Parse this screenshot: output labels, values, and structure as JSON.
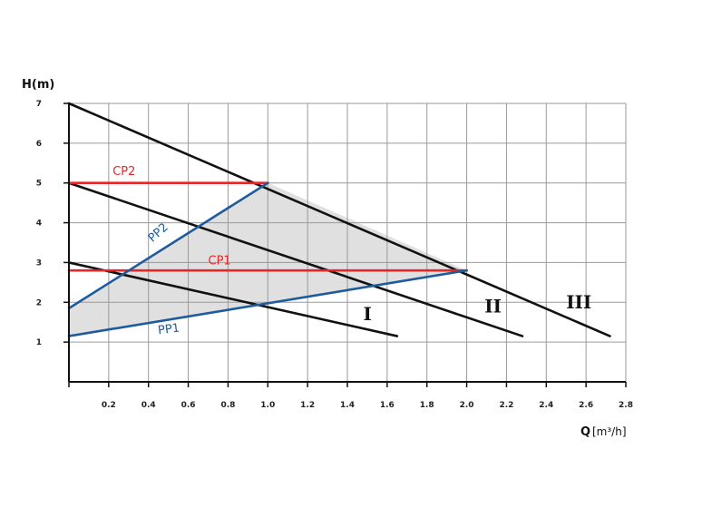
{
  "chart_data": {
    "type": "line",
    "title": "",
    "ylabel": "H(m)",
    "xlabel_main": "Q",
    "xlabel_unit": "[m³/h]",
    "xlim": [
      0,
      2.8
    ],
    "ylim": [
      0,
      7
    ],
    "x_ticks": [
      "0.2",
      "0.4",
      "0.6",
      "0.8",
      "1.0",
      "1.2",
      "1.4",
      "1.6",
      "1.8",
      "2.0",
      "2.2",
      "2.4",
      "2.6",
      "2.8"
    ],
    "y_ticks": [
      "1",
      "2",
      "3",
      "4",
      "5",
      "6",
      "7"
    ],
    "grid": true,
    "shaded_region": {
      "color": "#e0e0e0",
      "points": [
        [
          0,
          1.15
        ],
        [
          0,
          1.85
        ],
        [
          1.0,
          5.0
        ],
        [
          2.0,
          2.8
        ]
      ]
    },
    "series": [
      {
        "name": "I",
        "color": "#111111",
        "label_at": [
          1.48,
          1.55
        ],
        "points": [
          [
            0,
            3.0
          ],
          [
            1.65,
            1.15
          ]
        ]
      },
      {
        "name": "II",
        "color": "#111111",
        "label_at": [
          2.09,
          1.75
        ],
        "points": [
          [
            0,
            5.0
          ],
          [
            2.28,
            1.15
          ]
        ]
      },
      {
        "name": "III",
        "color": "#111111",
        "label_at": [
          2.5,
          1.85
        ],
        "points": [
          [
            0,
            7.0
          ],
          [
            2.72,
            1.15
          ]
        ]
      },
      {
        "name": "CP1",
        "color": "#e8262a",
        "label_at": [
          0.7,
          2.95
        ],
        "label_rotate": 0,
        "points": [
          [
            0,
            2.8
          ],
          [
            2.0,
            2.8
          ]
        ]
      },
      {
        "name": "CP2",
        "color": "#e8262a",
        "label_at": [
          0.22,
          5.2
        ],
        "label_rotate": 0,
        "points": [
          [
            0,
            5.0
          ],
          [
            1.0,
            5.0
          ]
        ]
      },
      {
        "name": "PP1",
        "color": "#1e5b9c",
        "label_at": [
          0.45,
          1.2
        ],
        "label_rotate": -7,
        "points": [
          [
            0,
            1.15
          ],
          [
            2.0,
            2.8
          ]
        ]
      },
      {
        "name": "PP2",
        "color": "#1e5b9c",
        "label_at": [
          0.42,
          3.5
        ],
        "label_rotate": -42,
        "points": [
          [
            0,
            1.85
          ],
          [
            1.0,
            5.0
          ]
        ]
      }
    ]
  }
}
